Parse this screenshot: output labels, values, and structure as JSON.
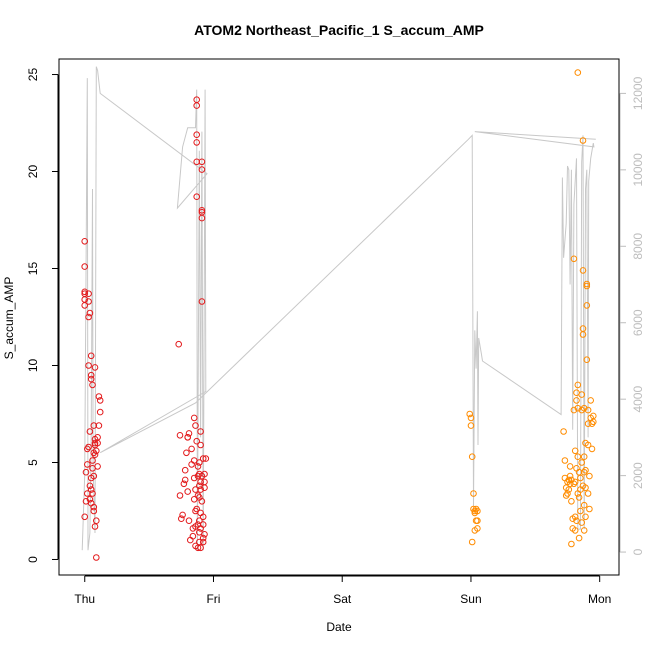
{
  "chart_data": {
    "type": "scatter",
    "title": "ATOM2 Northeast_Pacific_1 S_accum_AMP",
    "xlabel": "Date",
    "ylabel": "S_accum_AMP",
    "x_ticks": [
      "Thu",
      "Fri",
      "Sat",
      "Sun",
      "Mon"
    ],
    "xlim_days": [
      -0.2,
      4.15
    ],
    "ylim": [
      -0.8,
      25.8
    ],
    "y_ticks": [
      0,
      5,
      10,
      15,
      20,
      25
    ],
    "y2lim": [
      -600,
      12900
    ],
    "y2_ticks": [
      0,
      2000,
      4000,
      6000,
      8000,
      10000,
      12000
    ],
    "grid": false,
    "colors": {
      "series_red": "#e31a1c",
      "series_orange": "#ff8c00",
      "line": "#c8c8c8",
      "axis": "#000000",
      "right_axis": "#bdbdbd"
    },
    "series": [
      {
        "color": "red",
        "points": [
          [
            0.0,
            13.8
          ],
          [
            0.0,
            13.7
          ],
          [
            0.0,
            13.4
          ],
          [
            0.0,
            13.1
          ],
          [
            0.0,
            15.1
          ],
          [
            0.0,
            16.4
          ],
          [
            0.0,
            2.2
          ],
          [
            0.01,
            4.5
          ],
          [
            0.01,
            3.0
          ],
          [
            0.02,
            3.4
          ],
          [
            0.02,
            5.7
          ],
          [
            0.02,
            4.9
          ],
          [
            0.03,
            12.5
          ],
          [
            0.03,
            13.7
          ],
          [
            0.03,
            13.3
          ],
          [
            0.03,
            5.8
          ],
          [
            0.03,
            10.0
          ],
          [
            0.04,
            12.7
          ],
          [
            0.04,
            3.8
          ],
          [
            0.04,
            3.1
          ],
          [
            0.04,
            6.6
          ],
          [
            0.05,
            9.5
          ],
          [
            0.05,
            9.3
          ],
          [
            0.05,
            10.5
          ],
          [
            0.05,
            4.2
          ],
          [
            0.05,
            3.6
          ],
          [
            0.05,
            2.9
          ],
          [
            0.06,
            9.0
          ],
          [
            0.06,
            3.4
          ],
          [
            0.06,
            4.7
          ],
          [
            0.06,
            5.1
          ],
          [
            0.07,
            5.5
          ],
          [
            0.07,
            6.9
          ],
          [
            0.07,
            4.3
          ],
          [
            0.07,
            2.7
          ],
          [
            0.07,
            2.5
          ],
          [
            0.08,
            6.0
          ],
          [
            0.08,
            5.9
          ],
          [
            0.08,
            5.4
          ],
          [
            0.08,
            1.7
          ],
          [
            0.08,
            9.9
          ],
          [
            0.08,
            6.2
          ],
          [
            0.09,
            2.0
          ],
          [
            0.09,
            0.1
          ],
          [
            0.09,
            5.6
          ],
          [
            0.1,
            4.8
          ],
          [
            0.1,
            6.0
          ],
          [
            0.1,
            6.3
          ],
          [
            0.11,
            6.9
          ],
          [
            0.11,
            8.4
          ],
          [
            0.12,
            7.6
          ],
          [
            0.12,
            8.2
          ],
          [
            0.73,
            11.1
          ],
          [
            0.74,
            6.4
          ],
          [
            0.74,
            3.3
          ],
          [
            0.75,
            2.1
          ],
          [
            0.76,
            2.3
          ],
          [
            0.77,
            3.9
          ],
          [
            0.78,
            4.1
          ],
          [
            0.78,
            4.6
          ],
          [
            0.79,
            5.5
          ],
          [
            0.8,
            6.3
          ],
          [
            0.8,
            3.5
          ],
          [
            0.8,
            6.3
          ],
          [
            0.81,
            2.0
          ],
          [
            0.81,
            6.5
          ],
          [
            0.82,
            1.0
          ],
          [
            0.83,
            4.9
          ],
          [
            0.83,
            5.7
          ],
          [
            0.84,
            1.2
          ],
          [
            0.84,
            1.6
          ],
          [
            0.85,
            3.1
          ],
          [
            0.85,
            4.2
          ],
          [
            0.85,
            7.3
          ],
          [
            0.85,
            5.1
          ],
          [
            0.86,
            2.5
          ],
          [
            0.86,
            3.6
          ],
          [
            0.86,
            6.9
          ],
          [
            0.86,
            1.7
          ],
          [
            0.86,
            0.7
          ],
          [
            0.87,
            2.6
          ],
          [
            0.87,
            6.1
          ],
          [
            0.87,
            23.4
          ],
          [
            0.87,
            23.7
          ],
          [
            0.87,
            21.9
          ],
          [
            0.87,
            21.5
          ],
          [
            0.87,
            20.5
          ],
          [
            0.87,
            18.7
          ],
          [
            0.88,
            4.8
          ],
          [
            0.88,
            4.3
          ],
          [
            0.88,
            3.3
          ],
          [
            0.88,
            1.8
          ],
          [
            0.88,
            0.6
          ],
          [
            0.89,
            1.4
          ],
          [
            0.89,
            0.9
          ],
          [
            0.89,
            2.0
          ],
          [
            0.89,
            3.2
          ],
          [
            0.89,
            3.8
          ],
          [
            0.89,
            4.4
          ],
          [
            0.89,
            5.0
          ],
          [
            0.9,
            4.0
          ],
          [
            0.9,
            6.6
          ],
          [
            0.9,
            5.9
          ],
          [
            0.9,
            3.6
          ],
          [
            0.9,
            2.4
          ],
          [
            0.9,
            1.6
          ],
          [
            0.9,
            0.6
          ],
          [
            0.91,
            17.9
          ],
          [
            0.91,
            17.6
          ],
          [
            0.91,
            18.0
          ],
          [
            0.91,
            20.5
          ],
          [
            0.91,
            20.1
          ],
          [
            0.91,
            13.3
          ],
          [
            0.91,
            3.0
          ],
          [
            0.91,
            4.3
          ],
          [
            0.92,
            5.2
          ],
          [
            0.92,
            2.2
          ],
          [
            0.92,
            1.8
          ],
          [
            0.92,
            1.1
          ],
          [
            0.92,
            0.9
          ],
          [
            0.93,
            1.3
          ],
          [
            0.93,
            3.7
          ],
          [
            0.93,
            4.4
          ],
          [
            0.93,
            4.0
          ],
          [
            0.94,
            5.2
          ]
        ]
      },
      {
        "color": "orange",
        "points": [
          [
            2.99,
            7.5
          ],
          [
            3.0,
            7.3
          ],
          [
            3.0,
            6.9
          ],
          [
            3.01,
            5.3
          ],
          [
            3.01,
            0.9
          ],
          [
            3.02,
            2.6
          ],
          [
            3.02,
            3.4
          ],
          [
            3.03,
            2.5
          ],
          [
            3.03,
            2.4
          ],
          [
            3.03,
            1.5
          ],
          [
            3.04,
            2.6
          ],
          [
            3.04,
            2.0
          ],
          [
            3.05,
            1.6
          ],
          [
            3.05,
            2.0
          ],
          [
            3.05,
            2.5
          ],
          [
            3.72,
            6.6
          ],
          [
            3.73,
            4.2
          ],
          [
            3.73,
            5.1
          ],
          [
            3.74,
            3.7
          ],
          [
            3.74,
            3.3
          ],
          [
            3.75,
            4.0
          ],
          [
            3.75,
            3.4
          ],
          [
            3.76,
            4.1
          ],
          [
            3.76,
            3.6
          ],
          [
            3.77,
            3.9
          ],
          [
            3.77,
            4.3
          ],
          [
            3.77,
            4.8
          ],
          [
            3.78,
            3.0
          ],
          [
            3.78,
            4.1
          ],
          [
            3.78,
            0.8
          ],
          [
            3.79,
            2.1
          ],
          [
            3.79,
            1.6
          ],
          [
            3.8,
            15.5
          ],
          [
            3.8,
            7.7
          ],
          [
            3.8,
            3.9
          ],
          [
            3.81,
            5.6
          ],
          [
            3.81,
            4.0
          ],
          [
            3.81,
            2.2
          ],
          [
            3.81,
            1.5
          ],
          [
            3.82,
            2.0
          ],
          [
            3.82,
            4.7
          ],
          [
            3.82,
            8.2
          ],
          [
            3.82,
            8.6
          ],
          [
            3.83,
            3.4
          ],
          [
            3.83,
            5.3
          ],
          [
            3.83,
            9.0
          ],
          [
            3.83,
            25.1
          ],
          [
            3.83,
            7.8
          ],
          [
            3.84,
            4.5
          ],
          [
            3.84,
            3.2
          ],
          [
            3.84,
            1.1
          ],
          [
            3.85,
            2.5
          ],
          [
            3.85,
            3.6
          ],
          [
            3.85,
            4.2
          ],
          [
            3.86,
            7.7
          ],
          [
            3.86,
            8.5
          ],
          [
            3.86,
            5.0
          ],
          [
            3.86,
            1.9
          ],
          [
            3.87,
            3.8
          ],
          [
            3.87,
            11.9
          ],
          [
            3.87,
            11.6
          ],
          [
            3.87,
            14.9
          ],
          [
            3.87,
            21.6
          ],
          [
            3.88,
            7.8
          ],
          [
            3.88,
            5.3
          ],
          [
            3.88,
            4.5
          ],
          [
            3.88,
            2.8
          ],
          [
            3.88,
            1.5
          ],
          [
            3.89,
            2.2
          ],
          [
            3.89,
            3.7
          ],
          [
            3.89,
            6.0
          ],
          [
            3.89,
            4.6
          ],
          [
            3.9,
            13.1
          ],
          [
            3.9,
            14.2
          ],
          [
            3.9,
            10.3
          ],
          [
            3.9,
            14.1
          ],
          [
            3.91,
            7.7
          ],
          [
            3.91,
            7.0
          ],
          [
            3.91,
            5.9
          ],
          [
            3.91,
            3.4
          ],
          [
            3.92,
            4.3
          ],
          [
            3.92,
            2.6
          ],
          [
            3.93,
            7.3
          ],
          [
            3.93,
            8.2
          ],
          [
            3.94,
            7.0
          ],
          [
            3.94,
            5.7
          ],
          [
            3.95,
            7.1
          ],
          [
            3.95,
            7.4
          ]
        ]
      }
    ],
    "secondary_line": {
      "color": "gray",
      "points": [
        [
          -0.02,
          50
        ],
        [
          0.0,
          2000
        ],
        [
          0.02,
          12400
        ],
        [
          0.025,
          50
        ],
        [
          0.04,
          500
        ],
        [
          0.05,
          3000
        ],
        [
          0.06,
          9500
        ],
        [
          0.065,
          2200
        ],
        [
          0.08,
          500
        ],
        [
          0.09,
          12700
        ],
        [
          0.1,
          12600
        ],
        [
          0.12,
          12000
        ],
        [
          0.95,
          9900
        ],
        [
          0.72,
          9000
        ],
        [
          0.74,
          9800
        ],
        [
          0.76,
          10600
        ],
        [
          0.8,
          11100
        ],
        [
          0.86,
          11100
        ],
        [
          0.87,
          12100
        ],
        [
          0.875,
          50
        ],
        [
          0.89,
          10500
        ],
        [
          0.9,
          3000
        ],
        [
          0.91,
          11000
        ],
        [
          0.92,
          50
        ],
        [
          0.935,
          12100
        ],
        [
          0.94,
          4200
        ],
        [
          0.12,
          2600
        ],
        [
          0.86,
          3900
        ],
        [
          2.98,
          10800
        ],
        [
          3.01,
          10900
        ],
        [
          3.02,
          1200
        ],
        [
          3.03,
          5800
        ],
        [
          3.04,
          4800
        ],
        [
          3.05,
          6300
        ],
        [
          3.055,
          2800
        ],
        [
          3.06,
          5600
        ],
        [
          3.08,
          5200
        ],
        [
          3.09,
          5000
        ],
        [
          3.7,
          3600
        ],
        [
          3.71,
          9800
        ],
        [
          3.72,
          7700
        ],
        [
          3.74,
          8600
        ],
        [
          3.75,
          10100
        ],
        [
          3.76,
          10000
        ],
        [
          3.77,
          7000
        ],
        [
          3.78,
          10000
        ],
        [
          3.79,
          3200
        ],
        [
          3.8,
          9100
        ],
        [
          3.82,
          10300
        ],
        [
          3.83,
          600
        ],
        [
          3.85,
          600
        ],
        [
          3.86,
          10200
        ],
        [
          3.87,
          10900
        ],
        [
          3.88,
          600
        ],
        [
          3.89,
          9500
        ],
        [
          3.9,
          10000
        ],
        [
          3.91,
          3000
        ],
        [
          3.915,
          9700
        ],
        [
          3.93,
          10300
        ],
        [
          3.95,
          10700
        ],
        [
          3.955,
          10600
        ],
        [
          3.03,
          11000
        ],
        [
          3.97,
          10800
        ]
      ]
    }
  }
}
